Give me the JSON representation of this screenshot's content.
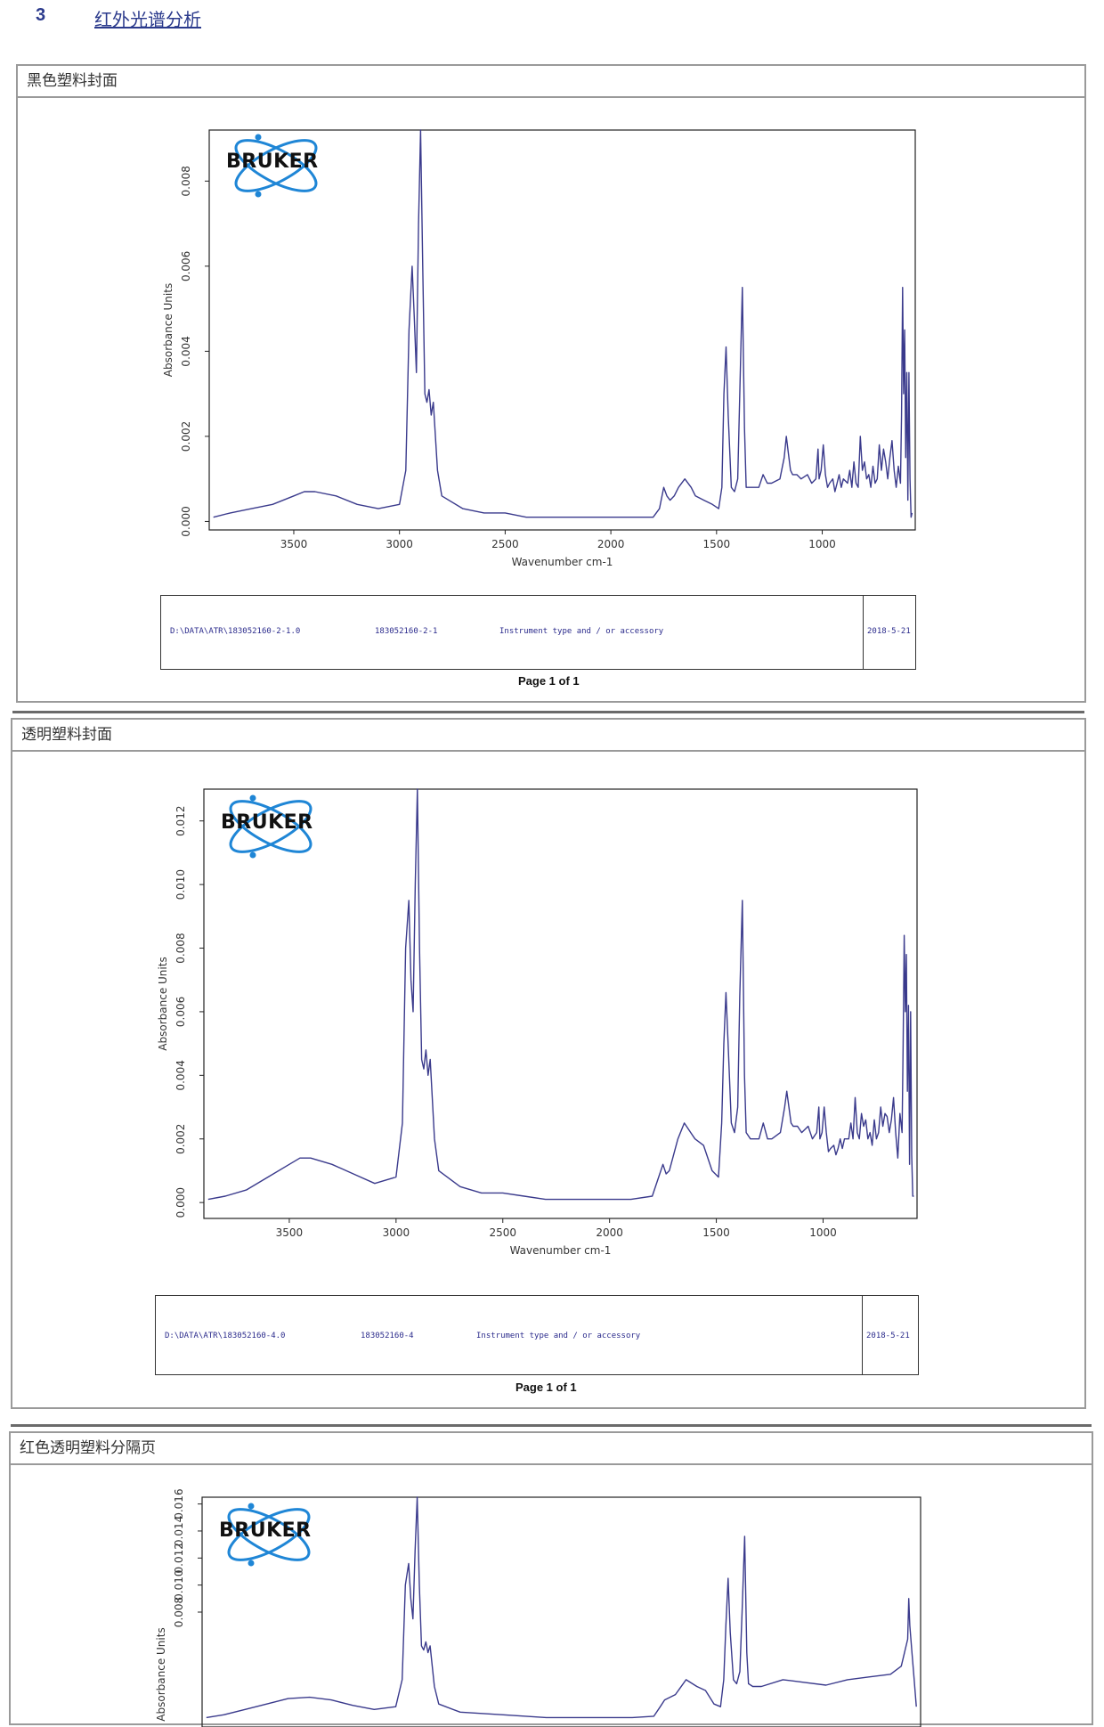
{
  "heading": {
    "number": "3",
    "text": "红外光谱分析"
  },
  "sections": [
    {
      "title": "黑色塑料封面",
      "footer": {
        "path": "D:\\DATA\\ATR\\183052160-2-1.0",
        "sample": "183052160-2-1",
        "instrument": "Instrument type and / or accessory",
        "date": "2018-5-21"
      },
      "page_label": "Page 1 of 1"
    },
    {
      "title": "透明塑料封面",
      "footer": {
        "path": "D:\\DATA\\ATR\\183052160-4.0",
        "sample": "183052160-4",
        "instrument": "Instrument type and / or accessory",
        "date": "2018-5-21"
      },
      "page_label": "Page 1 of 1"
    },
    {
      "title": "红色透明塑料分隔页",
      "footer": null,
      "page_label": ""
    }
  ],
  "logo": {
    "text": "BRUKER",
    "icon": "bruker-atom-logo"
  },
  "colors": {
    "spectrum": "#3a3a8c",
    "heading": "#2b3a8c",
    "frame": "#9a9a9a"
  },
  "chart_data": [
    {
      "type": "line",
      "xlabel": "Wavenumber cm-1",
      "ylabel": "Absorbance Units",
      "xlim": [
        3900,
        560
      ],
      "ylim": [
        -0.0002,
        0.0092
      ],
      "xticks": [
        3500,
        3000,
        2500,
        2000,
        1500,
        1000
      ],
      "yticks": [
        0.0,
        0.002,
        0.004,
        0.006,
        0.008
      ],
      "ytick_labels": [
        "0.000",
        "0.002",
        "0.004",
        "0.006",
        "0.008"
      ],
      "series": [
        {
          "x": [
            3880,
            3800,
            3700,
            3600,
            3500,
            3450,
            3400,
            3300,
            3200,
            3100,
            3000,
            2970,
            2955,
            2940,
            2930,
            2920,
            2910,
            2900,
            2890,
            2880,
            2870,
            2860,
            2850,
            2840,
            2820,
            2800,
            2700,
            2600,
            2500,
            2400,
            2300,
            2200,
            2100,
            2000,
            1900,
            1800,
            1770,
            1750,
            1735,
            1720,
            1700,
            1680,
            1650,
            1620,
            1600,
            1560,
            1520,
            1490,
            1475,
            1465,
            1455,
            1445,
            1430,
            1415,
            1400,
            1390,
            1378,
            1368,
            1360,
            1340,
            1300,
            1280,
            1260,
            1240,
            1200,
            1180,
            1170,
            1160,
            1150,
            1140,
            1120,
            1100,
            1070,
            1050,
            1030,
            1020,
            1015,
            1005,
            995,
            985,
            975,
            965,
            950,
            940,
            930,
            920,
            910,
            900,
            880,
            870,
            860,
            850,
            840,
            830,
            820,
            810,
            800,
            790,
            780,
            770,
            760,
            750,
            740,
            730,
            720,
            710,
            700,
            690,
            680,
            670,
            660,
            650,
            640,
            630,
            625,
            620,
            615,
            610,
            605,
            600,
            595,
            590,
            585,
            580,
            575
          ],
          "y": [
            0.0001,
            0.0002,
            0.0003,
            0.0004,
            0.0006,
            0.0007,
            0.0007,
            0.0006,
            0.0004,
            0.0003,
            0.0004,
            0.0012,
            0.0045,
            0.006,
            0.0048,
            0.0035,
            0.007,
            0.0092,
            0.006,
            0.003,
            0.0028,
            0.0031,
            0.0025,
            0.0028,
            0.0012,
            0.0006,
            0.0003,
            0.0002,
            0.0002,
            0.0001,
            0.0001,
            0.0001,
            0.0001,
            0.0001,
            0.0001,
            0.0001,
            0.0003,
            0.0008,
            0.0006,
            0.0005,
            0.0006,
            0.0008,
            0.001,
            0.0008,
            0.0006,
            0.0005,
            0.0004,
            0.0003,
            0.0008,
            0.003,
            0.0041,
            0.0025,
            0.0008,
            0.0007,
            0.001,
            0.003,
            0.0055,
            0.0022,
            0.0008,
            0.0008,
            0.0008,
            0.0011,
            0.0009,
            0.0009,
            0.001,
            0.0015,
            0.002,
            0.0016,
            0.0012,
            0.0011,
            0.0011,
            0.001,
            0.0011,
            0.0009,
            0.001,
            0.0017,
            0.001,
            0.0012,
            0.0018,
            0.0011,
            0.0008,
            0.0009,
            0.001,
            0.0007,
            0.0009,
            0.0011,
            0.0008,
            0.001,
            0.0009,
            0.0012,
            0.0008,
            0.0014,
            0.0009,
            0.0008,
            0.002,
            0.0012,
            0.0014,
            0.001,
            0.0011,
            0.0008,
            0.0013,
            0.0009,
            0.001,
            0.0018,
            0.0012,
            0.0017,
            0.0014,
            0.001,
            0.0015,
            0.0019,
            0.0012,
            0.0008,
            0.0013,
            0.0009,
            0.0025,
            0.0055,
            0.003,
            0.0045,
            0.0015,
            0.0035,
            0.0005,
            0.0035,
            0.001,
            0.0001,
            0.0002
          ]
        }
      ]
    },
    {
      "type": "line",
      "xlabel": "Wavenumber cm-1",
      "ylabel": "Absorbance Units",
      "xlim": [
        3900,
        560
      ],
      "ylim": [
        -0.0005,
        0.013
      ],
      "xticks": [
        3500,
        3000,
        2500,
        2000,
        1500,
        1000
      ],
      "yticks": [
        0.0,
        0.002,
        0.004,
        0.006,
        0.008,
        0.01,
        0.012
      ],
      "ytick_labels": [
        "0.000",
        "0.002",
        "0.004",
        "0.006",
        "0.008",
        "0.010",
        "0.012"
      ],
      "series": [
        {
          "x": [
            3880,
            3800,
            3700,
            3600,
            3500,
            3450,
            3400,
            3300,
            3200,
            3100,
            3000,
            2970,
            2955,
            2940,
            2930,
            2920,
            2910,
            2900,
            2890,
            2880,
            2870,
            2860,
            2850,
            2840,
            2820,
            2800,
            2700,
            2600,
            2500,
            2400,
            2300,
            2200,
            2100,
            2000,
            1900,
            1800,
            1770,
            1750,
            1735,
            1720,
            1700,
            1680,
            1650,
            1620,
            1600,
            1560,
            1520,
            1490,
            1475,
            1465,
            1455,
            1445,
            1430,
            1415,
            1400,
            1390,
            1378,
            1368,
            1360,
            1340,
            1300,
            1280,
            1260,
            1240,
            1200,
            1180,
            1170,
            1160,
            1150,
            1140,
            1120,
            1100,
            1070,
            1050,
            1030,
            1020,
            1015,
            1005,
            995,
            985,
            975,
            965,
            950,
            940,
            930,
            920,
            910,
            900,
            880,
            870,
            860,
            850,
            840,
            830,
            820,
            810,
            800,
            790,
            780,
            770,
            760,
            750,
            740,
            730,
            720,
            710,
            700,
            690,
            680,
            670,
            660,
            650,
            640,
            630,
            625,
            620,
            615,
            610,
            605,
            600,
            595,
            590,
            585,
            580,
            575
          ],
          "y": [
            0.0001,
            0.0002,
            0.0004,
            0.0008,
            0.0012,
            0.0014,
            0.0014,
            0.0012,
            0.0009,
            0.0006,
            0.0008,
            0.0025,
            0.008,
            0.0095,
            0.007,
            0.006,
            0.01,
            0.013,
            0.008,
            0.0045,
            0.0042,
            0.0048,
            0.004,
            0.0045,
            0.002,
            0.001,
            0.0005,
            0.0003,
            0.0003,
            0.0002,
            0.0001,
            0.0001,
            0.0001,
            0.0001,
            0.0001,
            0.0002,
            0.0008,
            0.0012,
            0.0009,
            0.001,
            0.0015,
            0.002,
            0.0025,
            0.0022,
            0.002,
            0.0018,
            0.001,
            0.0008,
            0.0025,
            0.005,
            0.0066,
            0.005,
            0.0025,
            0.0022,
            0.003,
            0.0065,
            0.0095,
            0.004,
            0.0022,
            0.002,
            0.002,
            0.0025,
            0.002,
            0.002,
            0.0022,
            0.003,
            0.0035,
            0.003,
            0.0025,
            0.0024,
            0.0024,
            0.0022,
            0.0024,
            0.002,
            0.0022,
            0.003,
            0.002,
            0.0022,
            0.003,
            0.0022,
            0.0016,
            0.0017,
            0.0018,
            0.0015,
            0.0017,
            0.002,
            0.0017,
            0.002,
            0.002,
            0.0025,
            0.002,
            0.0033,
            0.0022,
            0.002,
            0.0028,
            0.0024,
            0.0026,
            0.002,
            0.0022,
            0.0018,
            0.0026,
            0.002,
            0.0022,
            0.003,
            0.0024,
            0.0028,
            0.0027,
            0.0022,
            0.0026,
            0.0033,
            0.0022,
            0.0014,
            0.0028,
            0.0022,
            0.005,
            0.0084,
            0.006,
            0.0078,
            0.0035,
            0.0062,
            0.0012,
            0.006,
            0.0015,
            0.0002,
            0.0002
          ]
        }
      ]
    },
    {
      "type": "line",
      "xlabel": "",
      "ylabel": "Absorbance Units",
      "xlim": [
        3900,
        560
      ],
      "ylim": [
        -0.0005,
        0.0165
      ],
      "xticks": [],
      "yticks": [
        0.008,
        0.01,
        0.012,
        0.014,
        0.016
      ],
      "ytick_labels": [
        "0.008",
        "0.010",
        "0.012",
        "0.014",
        "0.016"
      ],
      "series": [
        {
          "x": [
            3880,
            3800,
            3700,
            3600,
            3500,
            3400,
            3300,
            3200,
            3100,
            3000,
            2970,
            2955,
            2940,
            2930,
            2920,
            2910,
            2900,
            2890,
            2880,
            2870,
            2860,
            2850,
            2840,
            2820,
            2800,
            2700,
            2500,
            2300,
            2100,
            1900,
            1800,
            1770,
            1750,
            1700,
            1650,
            1600,
            1560,
            1520,
            1490,
            1475,
            1465,
            1455,
            1445,
            1430,
            1415,
            1400,
            1390,
            1378,
            1368,
            1360,
            1340,
            1300,
            1200,
            1100,
            1000,
            900,
            800,
            700,
            650,
            620,
            615,
            610,
            600,
            590,
            580
          ],
          "y": [
            0.0002,
            0.0004,
            0.0008,
            0.0012,
            0.0016,
            0.0017,
            0.0015,
            0.0011,
            0.0008,
            0.001,
            0.003,
            0.01,
            0.0116,
            0.009,
            0.0075,
            0.0125,
            0.0165,
            0.01,
            0.0055,
            0.0052,
            0.0058,
            0.005,
            0.0055,
            0.0025,
            0.0012,
            0.0006,
            0.0004,
            0.0002,
            0.0002,
            0.0002,
            0.0003,
            0.001,
            0.0015,
            0.0019,
            0.003,
            0.0025,
            0.0022,
            0.0012,
            0.001,
            0.003,
            0.007,
            0.0105,
            0.0065,
            0.003,
            0.0027,
            0.0036,
            0.008,
            0.0136,
            0.005,
            0.0027,
            0.0025,
            0.0025,
            0.003,
            0.0028,
            0.0026,
            0.003,
            0.0032,
            0.0034,
            0.004,
            0.006,
            0.009,
            0.007,
            0.005,
            0.003,
            0.001
          ]
        }
      ]
    }
  ]
}
